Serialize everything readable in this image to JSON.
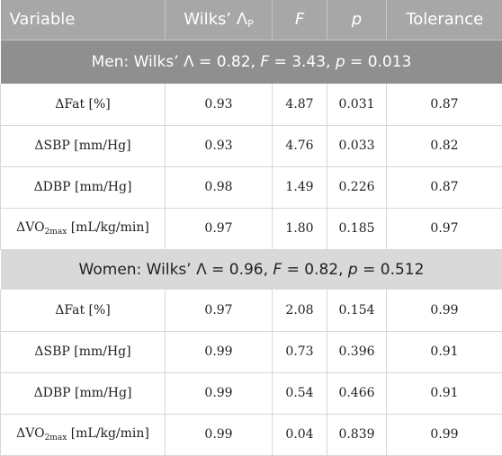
{
  "header": {
    "variable": "Variable",
    "wilks_partial": "Wilks’ Λ",
    "wilks_partial_sub": "P",
    "F": "F",
    "p": "p",
    "tolerance": "Tolerance"
  },
  "groups": [
    {
      "label_prefix": "Men: Wilks’ Λ = 0.82, ",
      "F_label": "F",
      "F_value": " = 3.43, ",
      "p_label": "p",
      "p_value": " = 0.013",
      "rows": [
        {
          "variable": "ΔFat [%]",
          "wilks": "0.93",
          "F": "4.87",
          "p": "0.031",
          "tolerance": "0.87"
        },
        {
          "variable": "ΔSBP [mm/Hg]",
          "wilks": "0.93",
          "F": "4.76",
          "p": "0.033",
          "tolerance": "0.82"
        },
        {
          "variable": "ΔDBP [mm/Hg]",
          "wilks": "0.98",
          "F": "1.49",
          "p": "0.226",
          "tolerance": "0.87"
        },
        {
          "variable_main": "ΔVO",
          "variable_sub": "2max",
          "variable_rest": " [mL/kg/min]",
          "wilks": "0.97",
          "F": "1.80",
          "p": "0.185",
          "tolerance": "0.97"
        }
      ]
    },
    {
      "label_prefix": "Women: Wilks’ Λ = 0.96, ",
      "F_label": "F",
      "F_value": " = 0.82, ",
      "p_label": "p",
      "p_value": " = 0.512",
      "rows": [
        {
          "variable": "ΔFat [%]",
          "wilks": "0.97",
          "F": "2.08",
          "p": "0.154",
          "tolerance": "0.99"
        },
        {
          "variable": "ΔSBP [mm/Hg]",
          "wilks": "0.99",
          "F": "0.73",
          "p": "0.396",
          "tolerance": "0.91"
        },
        {
          "variable": "ΔDBP [mm/Hg]",
          "wilks": "0.99",
          "F": "0.54",
          "p": "0.466",
          "tolerance": "0.91"
        },
        {
          "variable_main": "ΔVO",
          "variable_sub": "2max",
          "variable_rest": " [mL/kg/min]",
          "wilks": "0.99",
          "F": "0.04",
          "p": "0.839",
          "tolerance": "0.99"
        }
      ]
    }
  ]
}
